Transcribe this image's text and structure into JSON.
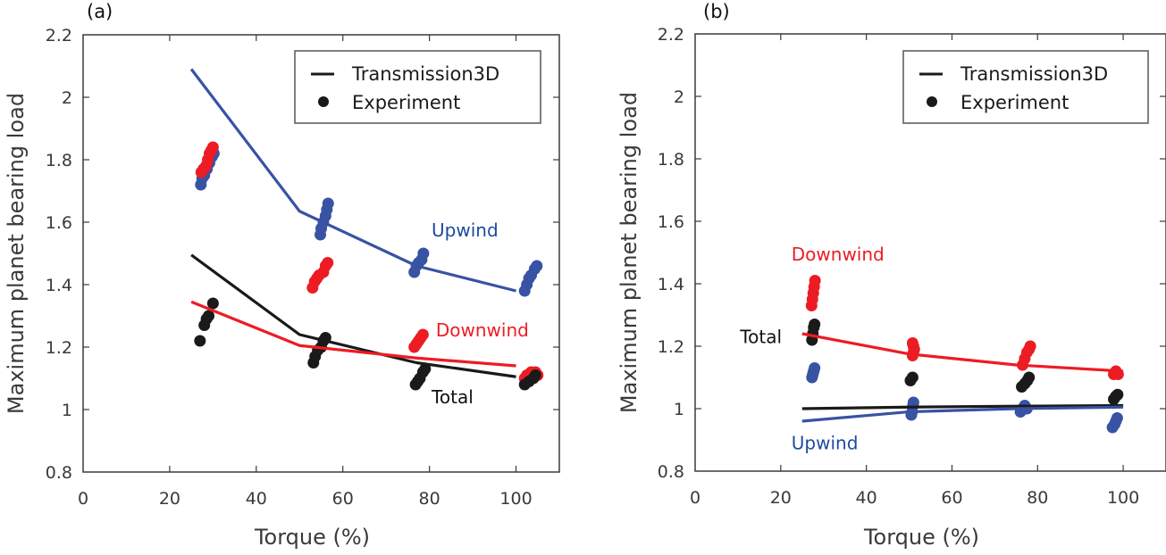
{
  "colors": {
    "upwind": "#3852a4",
    "downwind": "#ec1c24",
    "total": "#1a1a1a",
    "axis": "#3a3a3a",
    "upwind_text": "#1e4aa0",
    "downwind_text": "#ec1c24",
    "total_text": "#111111"
  },
  "chart_data": [
    {
      "type": "line",
      "panel_label": "(a)",
      "title": "",
      "xlabel": "Torque (%)",
      "ylabel": "Maximum planet bearing load",
      "xlim": [
        0,
        110
      ],
      "ylim": [
        0.8,
        2.2
      ],
      "xticks": [
        0,
        20,
        40,
        60,
        80,
        100
      ],
      "xtick_labels": [
        "0",
        "20",
        "40",
        "60",
        "80",
        "100"
      ],
      "yticks": [
        0.8,
        1.0,
        1.2,
        1.4,
        1.6,
        1.8,
        2.0,
        2.2
      ],
      "ytick_labels": [
        "0.8",
        "1",
        "1.2",
        "1.4",
        "1.6",
        "1.8",
        "2",
        "2.2"
      ],
      "grid": false,
      "legend": {
        "position": "top-right",
        "entries": [
          {
            "label": "Transmission3D",
            "marker": "line"
          },
          {
            "label": "Experiment",
            "marker": "dot"
          }
        ]
      },
      "model_series": [
        {
          "name": "Upwind",
          "x": [
            25,
            50,
            77,
            100
          ],
          "y": [
            2.09,
            1.635,
            1.46,
            1.38
          ]
        },
        {
          "name": "Total",
          "x": [
            25,
            50,
            77,
            100
          ],
          "y": [
            1.495,
            1.24,
            1.15,
            1.105
          ]
        },
        {
          "name": "Downwind",
          "x": [
            25,
            50,
            77,
            100
          ],
          "y": [
            1.345,
            1.205,
            1.165,
            1.14
          ]
        }
      ],
      "experiment_series": [
        {
          "name": "Upwind",
          "points": [
            [
              27.2,
              1.72
            ],
            [
              27.5,
              1.74
            ],
            [
              28.0,
              1.75
            ],
            [
              28.6,
              1.77
            ],
            [
              29.2,
              1.79
            ],
            [
              29.8,
              1.81
            ],
            [
              30.2,
              1.82
            ],
            [
              54.8,
              1.56
            ],
            [
              55.0,
              1.58
            ],
            [
              55.5,
              1.6
            ],
            [
              56.0,
              1.62
            ],
            [
              56.3,
              1.64
            ],
            [
              56.6,
              1.66
            ],
            [
              76.5,
              1.44
            ],
            [
              77.0,
              1.46
            ],
            [
              77.5,
              1.47
            ],
            [
              78.2,
              1.48
            ],
            [
              78.6,
              1.5
            ],
            [
              102.0,
              1.38
            ],
            [
              102.5,
              1.4
            ],
            [
              103.0,
              1.42
            ],
            [
              103.5,
              1.43
            ],
            [
              104.3,
              1.45
            ],
            [
              104.8,
              1.46
            ]
          ]
        },
        {
          "name": "Downwind",
          "points": [
            [
              27.3,
              1.76
            ],
            [
              27.8,
              1.77
            ],
            [
              28.4,
              1.78
            ],
            [
              28.8,
              1.8
            ],
            [
              29.2,
              1.82
            ],
            [
              29.6,
              1.83
            ],
            [
              30.0,
              1.84
            ],
            [
              53.0,
              1.39
            ],
            [
              53.5,
              1.41
            ],
            [
              54.0,
              1.42
            ],
            [
              54.5,
              1.43
            ],
            [
              55.5,
              1.44
            ],
            [
              56.0,
              1.46
            ],
            [
              56.5,
              1.47
            ],
            [
              76.5,
              1.2
            ],
            [
              77.0,
              1.21
            ],
            [
              77.5,
              1.22
            ],
            [
              78.0,
              1.23
            ],
            [
              78.5,
              1.24
            ],
            [
              102.0,
              1.1
            ],
            [
              102.5,
              1.11
            ],
            [
              103.5,
              1.12
            ],
            [
              104.5,
              1.12
            ],
            [
              105.0,
              1.11
            ]
          ]
        },
        {
          "name": "Total",
          "points": [
            [
              27.0,
              1.22
            ],
            [
              28.0,
              1.27
            ],
            [
              28.5,
              1.29
            ],
            [
              29.0,
              1.3
            ],
            [
              30.0,
              1.34
            ],
            [
              53.2,
              1.15
            ],
            [
              53.6,
              1.17
            ],
            [
              54.2,
              1.19
            ],
            [
              55.0,
              1.2
            ],
            [
              55.5,
              1.22
            ],
            [
              56.0,
              1.23
            ],
            [
              76.8,
              1.08
            ],
            [
              77.3,
              1.09
            ],
            [
              77.8,
              1.1
            ],
            [
              78.5,
              1.12
            ],
            [
              79.0,
              1.13
            ],
            [
              102.0,
              1.08
            ],
            [
              103.0,
              1.09
            ],
            [
              104.0,
              1.1
            ],
            [
              104.5,
              1.11
            ]
          ]
        }
      ],
      "annotations": [
        {
          "text": "Upwind",
          "series": "Upwind",
          "x": 80.5,
          "y": 1.555
        },
        {
          "text": "Downwind",
          "series": "Downwind",
          "x": 81.5,
          "y": 1.235
        },
        {
          "text": "Total",
          "series": "Total",
          "x": 80.5,
          "y": 1.02
        }
      ]
    },
    {
      "type": "line",
      "panel_label": "(b)",
      "title": "",
      "xlabel": "Torque (%)",
      "ylabel": "Maximum planet bearing load",
      "xlim": [
        0,
        110
      ],
      "ylim": [
        0.8,
        2.2
      ],
      "xticks": [
        0,
        20,
        40,
        60,
        80,
        100
      ],
      "xtick_labels": [
        "0",
        "20",
        "40",
        "60",
        "80",
        "100"
      ],
      "yticks": [
        0.8,
        1.0,
        1.2,
        1.4,
        1.6,
        1.8,
        2.0,
        2.2
      ],
      "ytick_labels": [
        "0.8",
        "1",
        "1.2",
        "1.4",
        "1.6",
        "1.8",
        "2",
        "2.2"
      ],
      "grid": false,
      "legend": {
        "position": "top-right",
        "entries": [
          {
            "label": "Transmission3D",
            "marker": "line"
          },
          {
            "label": "Experiment",
            "marker": "dot"
          }
        ]
      },
      "model_series": [
        {
          "name": "Downwind",
          "x": [
            25,
            50,
            75,
            100
          ],
          "y": [
            1.24,
            1.175,
            1.14,
            1.12
          ]
        },
        {
          "name": "Total",
          "x": [
            25,
            50,
            75,
            100
          ],
          "y": [
            1.0,
            1.005,
            1.008,
            1.01
          ]
        },
        {
          "name": "Upwind",
          "x": [
            25,
            50,
            75,
            100
          ],
          "y": [
            0.96,
            0.99,
            1.0,
            1.005
          ]
        }
      ],
      "experiment_series": [
        {
          "name": "Downwind",
          "points": [
            [
              27.2,
              1.33
            ],
            [
              27.4,
              1.35
            ],
            [
              27.6,
              1.37
            ],
            [
              27.8,
              1.39
            ],
            [
              28.0,
              1.41
            ],
            [
              50.8,
              1.17
            ],
            [
              51.0,
              1.18
            ],
            [
              51.2,
              1.19
            ],
            [
              51.0,
              1.2
            ],
            [
              50.8,
              1.21
            ],
            [
              76.5,
              1.14
            ],
            [
              77.0,
              1.16
            ],
            [
              77.5,
              1.18
            ],
            [
              78.0,
              1.19
            ],
            [
              78.3,
              1.2
            ],
            [
              97.8,
              1.11
            ],
            [
              98.3,
              1.12
            ],
            [
              98.8,
              1.11
            ]
          ]
        },
        {
          "name": "Total",
          "points": [
            [
              27.3,
              1.22
            ],
            [
              27.5,
              1.24
            ],
            [
              27.7,
              1.26
            ],
            [
              27.9,
              1.27
            ],
            [
              50.3,
              1.09
            ],
            [
              50.8,
              1.1
            ],
            [
              76.3,
              1.07
            ],
            [
              77.0,
              1.08
            ],
            [
              77.6,
              1.09
            ],
            [
              78.0,
              1.1
            ],
            [
              97.8,
              1.03
            ],
            [
              98.3,
              1.04
            ],
            [
              98.7,
              1.045
            ]
          ]
        },
        {
          "name": "Upwind",
          "points": [
            [
              27.3,
              1.1
            ],
            [
              27.5,
              1.11
            ],
            [
              27.7,
              1.12
            ],
            [
              27.9,
              1.13
            ],
            [
              50.5,
              0.98
            ],
            [
              50.7,
              0.99
            ],
            [
              50.9,
              1.01
            ],
            [
              51.0,
              1.02
            ],
            [
              76.0,
              0.99
            ],
            [
              76.5,
              1.0
            ],
            [
              77.0,
              1.01
            ],
            [
              77.5,
              1.0
            ],
            [
              97.5,
              0.94
            ],
            [
              98.0,
              0.95
            ],
            [
              98.3,
              0.96
            ],
            [
              98.6,
              0.97
            ]
          ]
        }
      ],
      "annotations": [
        {
          "text": "Downwind",
          "series": "Downwind",
          "x": 22.5,
          "y": 1.475
        },
        {
          "text": "Total",
          "series": "Total",
          "x": 10.5,
          "y": 1.21
        },
        {
          "text": "Upwind",
          "series": "Upwind",
          "x": 22.5,
          "y": 0.87
        }
      ]
    }
  ]
}
